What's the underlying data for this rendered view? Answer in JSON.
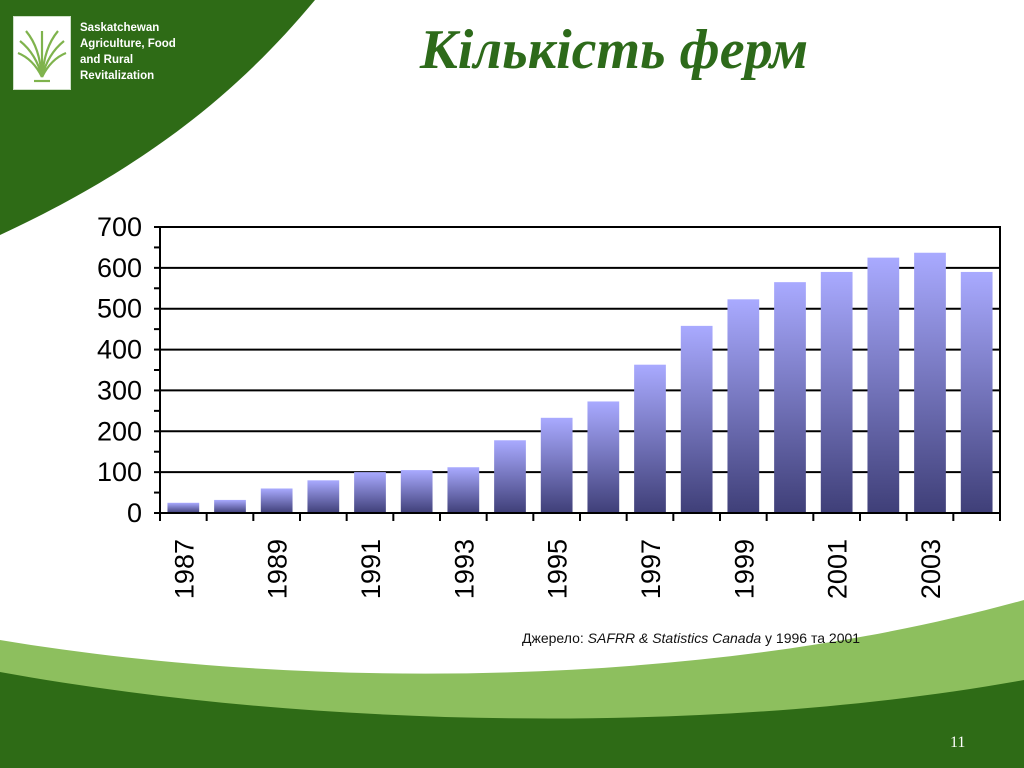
{
  "header": {
    "logo_lines": [
      "Saskatchewan",
      "Agriculture, Food",
      "and Rural",
      "Revitalization"
    ],
    "logo_icon": "wheat-sheaf-icon"
  },
  "slide": {
    "title": "Кількість ферм",
    "page_number": "11"
  },
  "source": {
    "prefix": "Джерело:",
    "italic": "SAFRR & Statistics Canada",
    "suffix": "у 1996 та 2001"
  },
  "colors": {
    "dark_green": "#2e6b16",
    "light_green": "#8dbf5e",
    "title_green": "#2d6a1a",
    "bar_light": "#a9aaff",
    "bar_dark": "#3f3f78"
  },
  "chart_data": {
    "type": "bar",
    "title": "",
    "xlabel": "",
    "ylabel": "",
    "categories": [
      "1987",
      "1988",
      "1989",
      "1990",
      "1991",
      "1992",
      "1993",
      "1994",
      "1995",
      "1996",
      "1997",
      "1998",
      "1999",
      "2000",
      "2001",
      "2002",
      "2003",
      "2004"
    ],
    "tick_labels": [
      "1987",
      "1989",
      "1991",
      "1993",
      "1995",
      "1997",
      "1999",
      "2001",
      "2003"
    ],
    "values": [
      25,
      32,
      60,
      80,
      100,
      105,
      112,
      178,
      233,
      273,
      363,
      458,
      523,
      565,
      590,
      625,
      637,
      590
    ],
    "ylim": [
      0,
      700
    ],
    "yticks": [
      "0",
      "100",
      "200",
      "300",
      "400",
      "500",
      "600",
      "700"
    ],
    "grid": true,
    "legend": "none"
  }
}
